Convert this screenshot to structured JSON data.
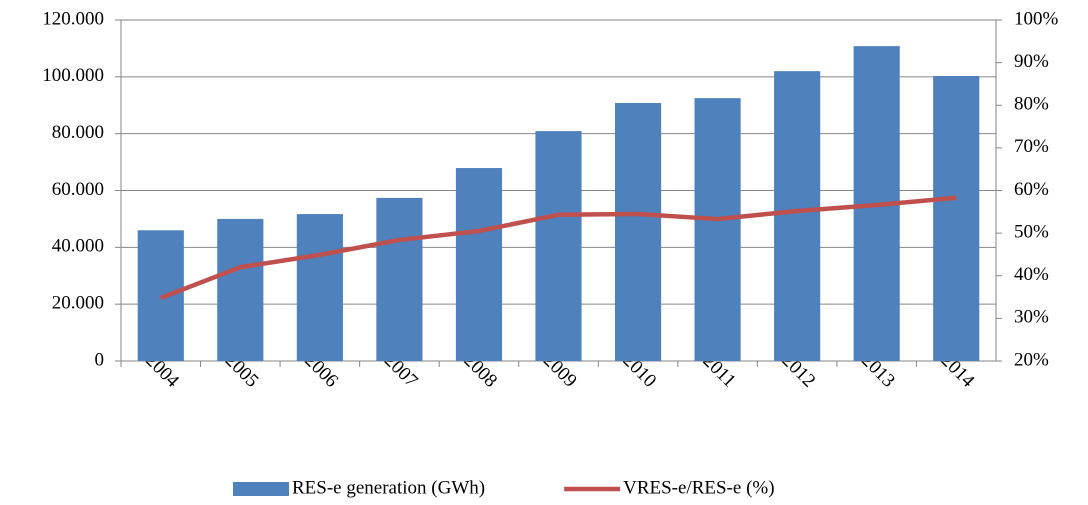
{
  "chart_data": {
    "type": "bar-line",
    "categories": [
      "2004",
      "2005",
      "2006",
      "2007",
      "2008",
      "2009",
      "2010",
      "2011",
      "2012",
      "2013",
      "2014"
    ],
    "series": [
      {
        "name": "RES-e generation (GWh)",
        "type": "bar",
        "color": "#4f81bd",
        "values": [
          46000,
          50000,
          51700,
          57400,
          67900,
          80900,
          90800,
          92500,
          102000,
          110800,
          100300
        ]
      },
      {
        "name": "VRES-e/RES-e (%)",
        "type": "line",
        "axis": "y2",
        "color": "#c0504d",
        "values": [
          34.8,
          42,
          44.9,
          48.4,
          50.5,
          54.3,
          54.5,
          53.3,
          55.2,
          56.6,
          58.3
        ]
      }
    ],
    "ylim": [
      0,
      120000
    ],
    "yticks": [
      0,
      {
        "value": 20000,
        "label": "20.000"
      },
      {
        "value": 40000,
        "label": "40.000"
      },
      {
        "value": 60000,
        "label": "60.000"
      },
      {
        "value": 80000,
        "label": "80.000"
      },
      {
        "value": 100000,
        "label": "100.000"
      },
      {
        "value": 120000,
        "label": "120.000"
      }
    ],
    "y2lim": [
      20,
      100
    ],
    "y2ticks": [
      {
        "value": 20,
        "label": "20%"
      },
      {
        "value": 30,
        "label": "30%"
      },
      {
        "value": 40,
        "label": "40%"
      },
      {
        "value": 50,
        "label": "50%"
      },
      {
        "value": 60,
        "label": "60%"
      },
      {
        "value": 70,
        "label": "70%"
      },
      {
        "value": 80,
        "label": "80%"
      },
      {
        "value": 90,
        "label": "90%"
      },
      {
        "value": 100,
        "label": "100%"
      }
    ],
    "grid": true,
    "legend": "bottom"
  }
}
